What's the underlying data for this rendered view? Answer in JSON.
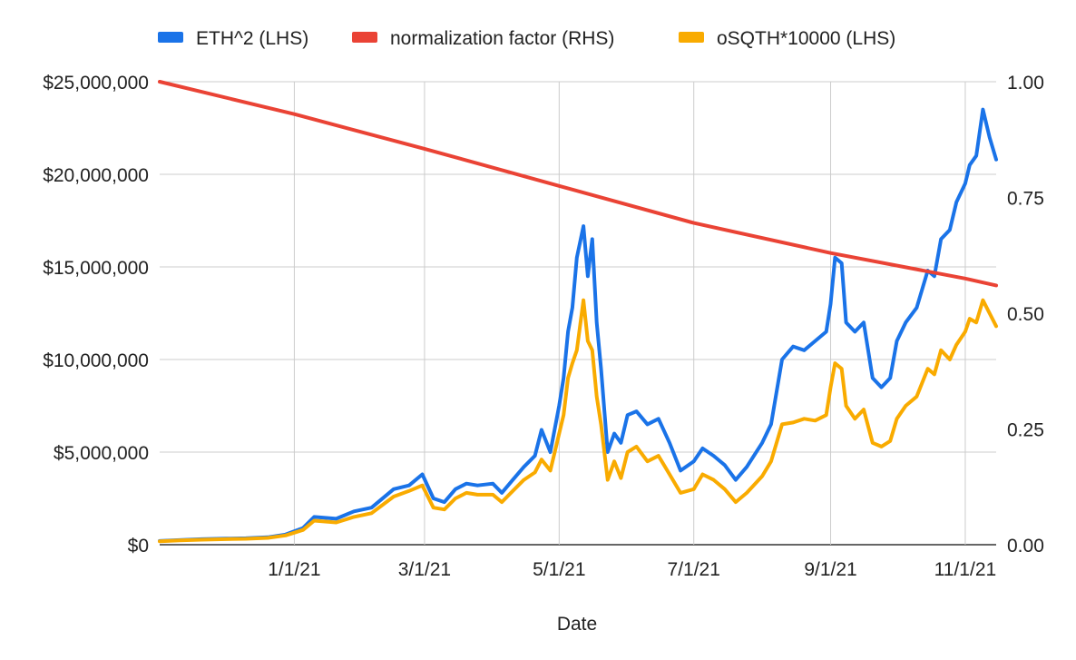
{
  "chart_data": {
    "type": "line",
    "xlabel": "Date",
    "ylabel_left": "",
    "ylabel_right": "",
    "x_range": [
      "2020-11-01",
      "2021-11-15"
    ],
    "ylim_left": [
      0,
      25000000
    ],
    "ylim_right": [
      0,
      1
    ],
    "x_ticks": [
      {
        "date": "2021-01-01",
        "label": "1/1/21"
      },
      {
        "date": "2021-03-01",
        "label": "3/1/21"
      },
      {
        "date": "2021-05-01",
        "label": "5/1/21"
      },
      {
        "date": "2021-07-01",
        "label": "7/1/21"
      },
      {
        "date": "2021-09-01",
        "label": "9/1/21"
      },
      {
        "date": "2021-11-01",
        "label": "11/1/21"
      }
    ],
    "y_ticks_left": [
      {
        "value": 0,
        "label": "$0"
      },
      {
        "value": 5000000,
        "label": "$5,000,000"
      },
      {
        "value": 10000000,
        "label": "$10,000,000"
      },
      {
        "value": 15000000,
        "label": "$15,000,000"
      },
      {
        "value": 20000000,
        "label": "$20,000,000"
      },
      {
        "value": 25000000,
        "label": "$25,000,000"
      }
    ],
    "y_ticks_right": [
      {
        "value": 0,
        "label": "0.00"
      },
      {
        "value": 0.25,
        "label": "0.25"
      },
      {
        "value": 0.5,
        "label": "0.50"
      },
      {
        "value": 0.75,
        "label": "0.75"
      },
      {
        "value": 1,
        "label": "1.00"
      }
    ],
    "grid": true,
    "legend_position": "top",
    "series": [
      {
        "name": "ETH^2 (LHS)",
        "axis": "left",
        "color": "#1a73e8",
        "points": [
          [
            "2020-11-01",
            200000
          ],
          [
            "2020-11-10",
            250000
          ],
          [
            "2020-11-20",
            300000
          ],
          [
            "2020-12-01",
            330000
          ],
          [
            "2020-12-10",
            350000
          ],
          [
            "2020-12-20",
            400000
          ],
          [
            "2020-12-28",
            550000
          ],
          [
            "2021-01-05",
            900000
          ],
          [
            "2021-01-10",
            1500000
          ],
          [
            "2021-01-20",
            1400000
          ],
          [
            "2021-01-28",
            1800000
          ],
          [
            "2021-02-05",
            2000000
          ],
          [
            "2021-02-15",
            3000000
          ],
          [
            "2021-02-22",
            3200000
          ],
          [
            "2021-02-28",
            3800000
          ],
          [
            "2021-03-05",
            2500000
          ],
          [
            "2021-03-10",
            2300000
          ],
          [
            "2021-03-15",
            3000000
          ],
          [
            "2021-03-20",
            3300000
          ],
          [
            "2021-03-25",
            3200000
          ],
          [
            "2021-04-01",
            3300000
          ],
          [
            "2021-04-05",
            2800000
          ],
          [
            "2021-04-10",
            3500000
          ],
          [
            "2021-04-15",
            4200000
          ],
          [
            "2021-04-20",
            4800000
          ],
          [
            "2021-04-23",
            6200000
          ],
          [
            "2021-04-27",
            5000000
          ],
          [
            "2021-05-01",
            7500000
          ],
          [
            "2021-05-03",
            9000000
          ],
          [
            "2021-05-05",
            11500000
          ],
          [
            "2021-05-07",
            12800000
          ],
          [
            "2021-05-09",
            15500000
          ],
          [
            "2021-05-12",
            17200000
          ],
          [
            "2021-05-14",
            14500000
          ],
          [
            "2021-05-16",
            16500000
          ],
          [
            "2021-05-18",
            12000000
          ],
          [
            "2021-05-20",
            9500000
          ],
          [
            "2021-05-23",
            5000000
          ],
          [
            "2021-05-26",
            6000000
          ],
          [
            "2021-05-29",
            5500000
          ],
          [
            "2021-06-01",
            7000000
          ],
          [
            "2021-06-05",
            7200000
          ],
          [
            "2021-06-10",
            6500000
          ],
          [
            "2021-06-15",
            6800000
          ],
          [
            "2021-06-20",
            5500000
          ],
          [
            "2021-06-25",
            4000000
          ],
          [
            "2021-07-01",
            4500000
          ],
          [
            "2021-07-05",
            5200000
          ],
          [
            "2021-07-10",
            4800000
          ],
          [
            "2021-07-15",
            4300000
          ],
          [
            "2021-07-20",
            3500000
          ],
          [
            "2021-07-25",
            4200000
          ],
          [
            "2021-08-01",
            5500000
          ],
          [
            "2021-08-05",
            6500000
          ],
          [
            "2021-08-10",
            10000000
          ],
          [
            "2021-08-15",
            10700000
          ],
          [
            "2021-08-20",
            10500000
          ],
          [
            "2021-08-25",
            11000000
          ],
          [
            "2021-08-30",
            11500000
          ],
          [
            "2021-09-01",
            13000000
          ],
          [
            "2021-09-03",
            15500000
          ],
          [
            "2021-09-06",
            15200000
          ],
          [
            "2021-09-08",
            12000000
          ],
          [
            "2021-09-12",
            11500000
          ],
          [
            "2021-09-16",
            12000000
          ],
          [
            "2021-09-20",
            9000000
          ],
          [
            "2021-09-24",
            8500000
          ],
          [
            "2021-09-28",
            9000000
          ],
          [
            "2021-10-01",
            11000000
          ],
          [
            "2021-10-05",
            12000000
          ],
          [
            "2021-10-10",
            12800000
          ],
          [
            "2021-10-15",
            14800000
          ],
          [
            "2021-10-18",
            14500000
          ],
          [
            "2021-10-21",
            16500000
          ],
          [
            "2021-10-25",
            17000000
          ],
          [
            "2021-10-28",
            18500000
          ],
          [
            "2021-11-01",
            19500000
          ],
          [
            "2021-11-03",
            20500000
          ],
          [
            "2021-11-06",
            21000000
          ],
          [
            "2021-11-09",
            23500000
          ],
          [
            "2021-11-12",
            22000000
          ],
          [
            "2021-11-15",
            20800000
          ]
        ]
      },
      {
        "name": "normalization factor (RHS)",
        "axis": "right",
        "color": "#ea4335",
        "points": [
          [
            "2020-11-01",
            1.0
          ],
          [
            "2021-01-01",
            0.93
          ],
          [
            "2021-03-01",
            0.855
          ],
          [
            "2021-05-01",
            0.775
          ],
          [
            "2021-07-01",
            0.695
          ],
          [
            "2021-09-01",
            0.63
          ],
          [
            "2021-11-01",
            0.575
          ],
          [
            "2021-11-15",
            0.56
          ]
        ]
      },
      {
        "name": "oSQTH*10000 (LHS)",
        "axis": "left",
        "color": "#f9ab00",
        "points": [
          [
            "2020-11-01",
            180000
          ],
          [
            "2020-11-10",
            230000
          ],
          [
            "2020-11-20",
            270000
          ],
          [
            "2020-12-01",
            300000
          ],
          [
            "2020-12-10",
            320000
          ],
          [
            "2020-12-20",
            370000
          ],
          [
            "2020-12-28",
            500000
          ],
          [
            "2021-01-05",
            800000
          ],
          [
            "2021-01-10",
            1300000
          ],
          [
            "2021-01-20",
            1200000
          ],
          [
            "2021-01-28",
            1500000
          ],
          [
            "2021-02-05",
            1700000
          ],
          [
            "2021-02-15",
            2600000
          ],
          [
            "2021-02-22",
            2900000
          ],
          [
            "2021-02-28",
            3200000
          ],
          [
            "2021-03-05",
            2000000
          ],
          [
            "2021-03-10",
            1900000
          ],
          [
            "2021-03-15",
            2500000
          ],
          [
            "2021-03-20",
            2800000
          ],
          [
            "2021-03-25",
            2700000
          ],
          [
            "2021-04-01",
            2700000
          ],
          [
            "2021-04-05",
            2300000
          ],
          [
            "2021-04-10",
            2900000
          ],
          [
            "2021-04-15",
            3500000
          ],
          [
            "2021-04-20",
            3900000
          ],
          [
            "2021-04-23",
            4600000
          ],
          [
            "2021-04-27",
            4000000
          ],
          [
            "2021-05-01",
            6000000
          ],
          [
            "2021-05-03",
            7000000
          ],
          [
            "2021-05-05",
            9000000
          ],
          [
            "2021-05-07",
            9800000
          ],
          [
            "2021-05-09",
            10500000
          ],
          [
            "2021-05-12",
            13200000
          ],
          [
            "2021-05-14",
            11000000
          ],
          [
            "2021-05-16",
            10500000
          ],
          [
            "2021-05-18",
            8000000
          ],
          [
            "2021-05-20",
            6500000
          ],
          [
            "2021-05-23",
            3500000
          ],
          [
            "2021-05-26",
            4500000
          ],
          [
            "2021-05-29",
            3600000
          ],
          [
            "2021-06-01",
            5000000
          ],
          [
            "2021-06-05",
            5300000
          ],
          [
            "2021-06-10",
            4500000
          ],
          [
            "2021-06-15",
            4800000
          ],
          [
            "2021-06-20",
            3800000
          ],
          [
            "2021-06-25",
            2800000
          ],
          [
            "2021-07-01",
            3000000
          ],
          [
            "2021-07-05",
            3800000
          ],
          [
            "2021-07-10",
            3500000
          ],
          [
            "2021-07-15",
            3000000
          ],
          [
            "2021-07-20",
            2300000
          ],
          [
            "2021-07-25",
            2800000
          ],
          [
            "2021-08-01",
            3700000
          ],
          [
            "2021-08-05",
            4500000
          ],
          [
            "2021-08-10",
            6500000
          ],
          [
            "2021-08-15",
            6600000
          ],
          [
            "2021-08-20",
            6800000
          ],
          [
            "2021-08-25",
            6700000
          ],
          [
            "2021-08-30",
            7000000
          ],
          [
            "2021-09-01",
            8500000
          ],
          [
            "2021-09-03",
            9800000
          ],
          [
            "2021-09-06",
            9500000
          ],
          [
            "2021-09-08",
            7500000
          ],
          [
            "2021-09-12",
            6800000
          ],
          [
            "2021-09-16",
            7300000
          ],
          [
            "2021-09-20",
            5500000
          ],
          [
            "2021-09-24",
            5300000
          ],
          [
            "2021-09-28",
            5600000
          ],
          [
            "2021-10-01",
            6800000
          ],
          [
            "2021-10-05",
            7500000
          ],
          [
            "2021-10-10",
            8000000
          ],
          [
            "2021-10-15",
            9500000
          ],
          [
            "2021-10-18",
            9200000
          ],
          [
            "2021-10-21",
            10500000
          ],
          [
            "2021-10-25",
            10000000
          ],
          [
            "2021-10-28",
            10800000
          ],
          [
            "2021-11-01",
            11500000
          ],
          [
            "2021-11-03",
            12200000
          ],
          [
            "2021-11-06",
            12000000
          ],
          [
            "2021-11-09",
            13200000
          ],
          [
            "2021-11-12",
            12500000
          ],
          [
            "2021-11-15",
            11800000
          ]
        ]
      }
    ]
  }
}
